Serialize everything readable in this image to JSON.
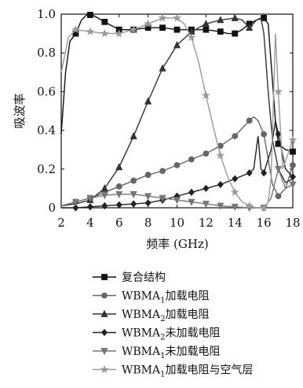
{
  "chart_data": {
    "type": "line",
    "xlabel": "频率 (GHz)",
    "ylabel": "吸波率",
    "xlim": [
      2,
      18
    ],
    "ylim": [
      0,
      1.0
    ],
    "xticks": [
      2,
      4,
      6,
      8,
      10,
      12,
      14,
      16,
      18
    ],
    "yticks": [
      0,
      0.2,
      0.4,
      0.6,
      0.8,
      1.0
    ],
    "ytick_labels": [
      "0",
      "0.2",
      "0.4",
      "0.6",
      "0.8",
      "1.0"
    ],
    "grid": false,
    "legend_position": "bottom",
    "series": [
      {
        "name": "复合结构",
        "color": "#111111",
        "marker": "square",
        "points": [
          [
            2,
            0.38
          ],
          [
            2.3,
            0.7
          ],
          [
            2.6,
            0.86
          ],
          [
            3,
            0.9
          ],
          [
            3.4,
            0.97
          ],
          [
            3.8,
            1.0
          ],
          [
            4.3,
            0.99
          ],
          [
            5,
            0.96
          ],
          [
            6,
            0.92
          ],
          [
            7,
            0.92
          ],
          [
            8,
            0.93
          ],
          [
            9,
            0.93
          ],
          [
            10,
            0.92
          ],
          [
            11,
            0.92
          ],
          [
            12,
            0.92
          ],
          [
            13,
            0.91
          ],
          [
            13.5,
            0.9
          ],
          [
            14,
            0.9
          ],
          [
            14.5,
            0.92
          ],
          [
            15,
            0.95
          ],
          [
            15.5,
            0.97
          ],
          [
            16,
            0.98
          ],
          [
            16.3,
            0.95
          ],
          [
            16.5,
            0.75
          ],
          [
            16.8,
            0.45
          ],
          [
            17,
            0.33
          ],
          [
            17.5,
            0.3
          ],
          [
            18,
            0.29
          ]
        ],
        "marker_x": [
          3,
          4,
          5,
          6,
          7,
          8,
          9,
          10,
          11,
          12,
          13,
          14,
          15,
          16,
          17,
          18
        ]
      },
      {
        "name": "WBMA1加载电阻",
        "label_main": "WBMA",
        "label_sub": "1",
        "label_rest": "加载电阻",
        "color": "#666666",
        "marker": "circle",
        "points": [
          [
            2,
            0.01
          ],
          [
            3,
            0.03
          ],
          [
            4,
            0.05
          ],
          [
            5,
            0.08
          ],
          [
            6,
            0.11
          ],
          [
            7,
            0.14
          ],
          [
            8,
            0.17
          ],
          [
            9,
            0.19
          ],
          [
            10,
            0.22
          ],
          [
            11,
            0.25
          ],
          [
            12,
            0.28
          ],
          [
            13,
            0.32
          ],
          [
            14,
            0.37
          ],
          [
            14.5,
            0.41
          ],
          [
            15,
            0.45
          ],
          [
            15.3,
            0.47
          ],
          [
            15.6,
            0.45
          ],
          [
            16,
            0.38
          ],
          [
            16.3,
            0.25
          ],
          [
            16.6,
            0.12
          ],
          [
            17,
            0.06
          ],
          [
            17.5,
            0.1
          ],
          [
            18,
            0.22
          ]
        ],
        "marker_x": [
          3,
          4,
          5,
          6,
          7,
          8,
          9,
          10,
          11,
          12,
          13,
          14,
          15,
          16,
          17,
          18
        ]
      },
      {
        "name": "WBMA2加载电阻",
        "label_main": "WBMA",
        "label_sub": "2",
        "label_rest": "加载电阻",
        "color": "#333333",
        "marker": "triangle",
        "points": [
          [
            2,
            0.01
          ],
          [
            3,
            0.02
          ],
          [
            4,
            0.04
          ],
          [
            5,
            0.1
          ],
          [
            6,
            0.21
          ],
          [
            7,
            0.37
          ],
          [
            8,
            0.55
          ],
          [
            9,
            0.72
          ],
          [
            10,
            0.84
          ],
          [
            11,
            0.91
          ],
          [
            12,
            0.95
          ],
          [
            13,
            0.97
          ],
          [
            14,
            0.98
          ],
          [
            14.5,
            0.97
          ],
          [
            15,
            0.93
          ],
          [
            15.5,
            0.97
          ],
          [
            15.8,
            0.98
          ],
          [
            16,
            0.9
          ],
          [
            16.3,
            0.6
          ],
          [
            16.6,
            0.35
          ],
          [
            17,
            0.2
          ],
          [
            17.5,
            0.13
          ],
          [
            18,
            0.15
          ]
        ],
        "marker_x": [
          4,
          5,
          6,
          7,
          8,
          9,
          10,
          11,
          12,
          13,
          14,
          15
        ]
      },
      {
        "name": "WBMA2未加载电阻",
        "label_main": "WBMA",
        "label_sub": "2",
        "label_rest": "未加载电阻",
        "color": "#222222",
        "marker": "diamond",
        "points": [
          [
            2,
            0
          ],
          [
            3,
            0
          ],
          [
            4,
            0.005
          ],
          [
            5,
            0.01
          ],
          [
            6,
            0.015
          ],
          [
            7,
            0.02
          ],
          [
            8,
            0.025
          ],
          [
            9,
            0.04
          ],
          [
            10,
            0.06
          ],
          [
            11,
            0.08
          ],
          [
            12,
            0.1
          ],
          [
            13,
            0.12
          ],
          [
            14,
            0.15
          ],
          [
            15,
            0.18
          ],
          [
            15.3,
            0.2
          ],
          [
            15.6,
            0.37
          ],
          [
            15.8,
            0.2
          ],
          [
            16,
            0.18
          ],
          [
            16.5,
            0.3
          ],
          [
            16.8,
            0.45
          ],
          [
            17,
            0.38
          ],
          [
            17.5,
            0.2
          ],
          [
            18,
            0.16
          ]
        ],
        "marker_x": [
          3,
          4,
          5,
          6,
          7,
          8,
          9,
          10,
          11,
          12,
          13,
          14,
          15,
          16,
          17,
          18
        ]
      },
      {
        "name": "WBMA1未加载电阻",
        "label_main": "WBMA",
        "label_sub": "1",
        "label_rest": "未加载电阻",
        "color": "#777777",
        "marker": "triangle-down",
        "points": [
          [
            2,
            0.01
          ],
          [
            3,
            0.03
          ],
          [
            4,
            0.05
          ],
          [
            5,
            0.065
          ],
          [
            6,
            0.07
          ],
          [
            7,
            0.07
          ],
          [
            8,
            0.06
          ],
          [
            9,
            0.05
          ],
          [
            10,
            0.04
          ],
          [
            11,
            0.03
          ],
          [
            12,
            0.02
          ],
          [
            13,
            0.01
          ],
          [
            14,
            0.005
          ],
          [
            15,
            0
          ],
          [
            16,
            0
          ],
          [
            16.5,
            0.05
          ],
          [
            17,
            0.2
          ],
          [
            17.5,
            0.1
          ],
          [
            18,
            0.12
          ]
        ],
        "marker_x": [
          3,
          4,
          5,
          6,
          7,
          8,
          9,
          10,
          11,
          12,
          13,
          14,
          15,
          16,
          17,
          18
        ]
      },
      {
        "name": "WBMA1加载电阻与空气层",
        "label_main": "WBMA",
        "label_sub": "1",
        "label_rest": "加载电阻与空气层",
        "color": "#999999",
        "marker": "star",
        "points": [
          [
            2,
            0.7
          ],
          [
            2.5,
            0.88
          ],
          [
            3,
            0.92
          ],
          [
            4,
            0.91
          ],
          [
            5,
            0.9
          ],
          [
            6,
            0.9
          ],
          [
            7,
            0.92
          ],
          [
            8,
            0.95
          ],
          [
            9,
            0.98
          ],
          [
            10,
            0.98
          ],
          [
            10.5,
            0.95
          ],
          [
            11,
            0.88
          ],
          [
            11.5,
            0.75
          ],
          [
            12,
            0.58
          ],
          [
            12.5,
            0.42
          ],
          [
            13,
            0.27
          ],
          [
            13.5,
            0.16
          ],
          [
            14,
            0.08
          ],
          [
            14.5,
            0.03
          ],
          [
            15,
            0.01
          ],
          [
            15.5,
            0
          ],
          [
            16,
            0
          ],
          [
            16.3,
            0.03
          ],
          [
            16.5,
            0.15
          ],
          [
            16.8,
            0.9
          ],
          [
            17,
            0.6
          ],
          [
            17.3,
            0.2
          ],
          [
            18,
            0.35
          ]
        ],
        "marker_x": [
          3,
          4,
          5,
          6,
          7,
          8,
          9,
          10,
          11,
          12,
          13,
          14,
          15,
          16,
          17,
          18
        ]
      }
    ]
  }
}
